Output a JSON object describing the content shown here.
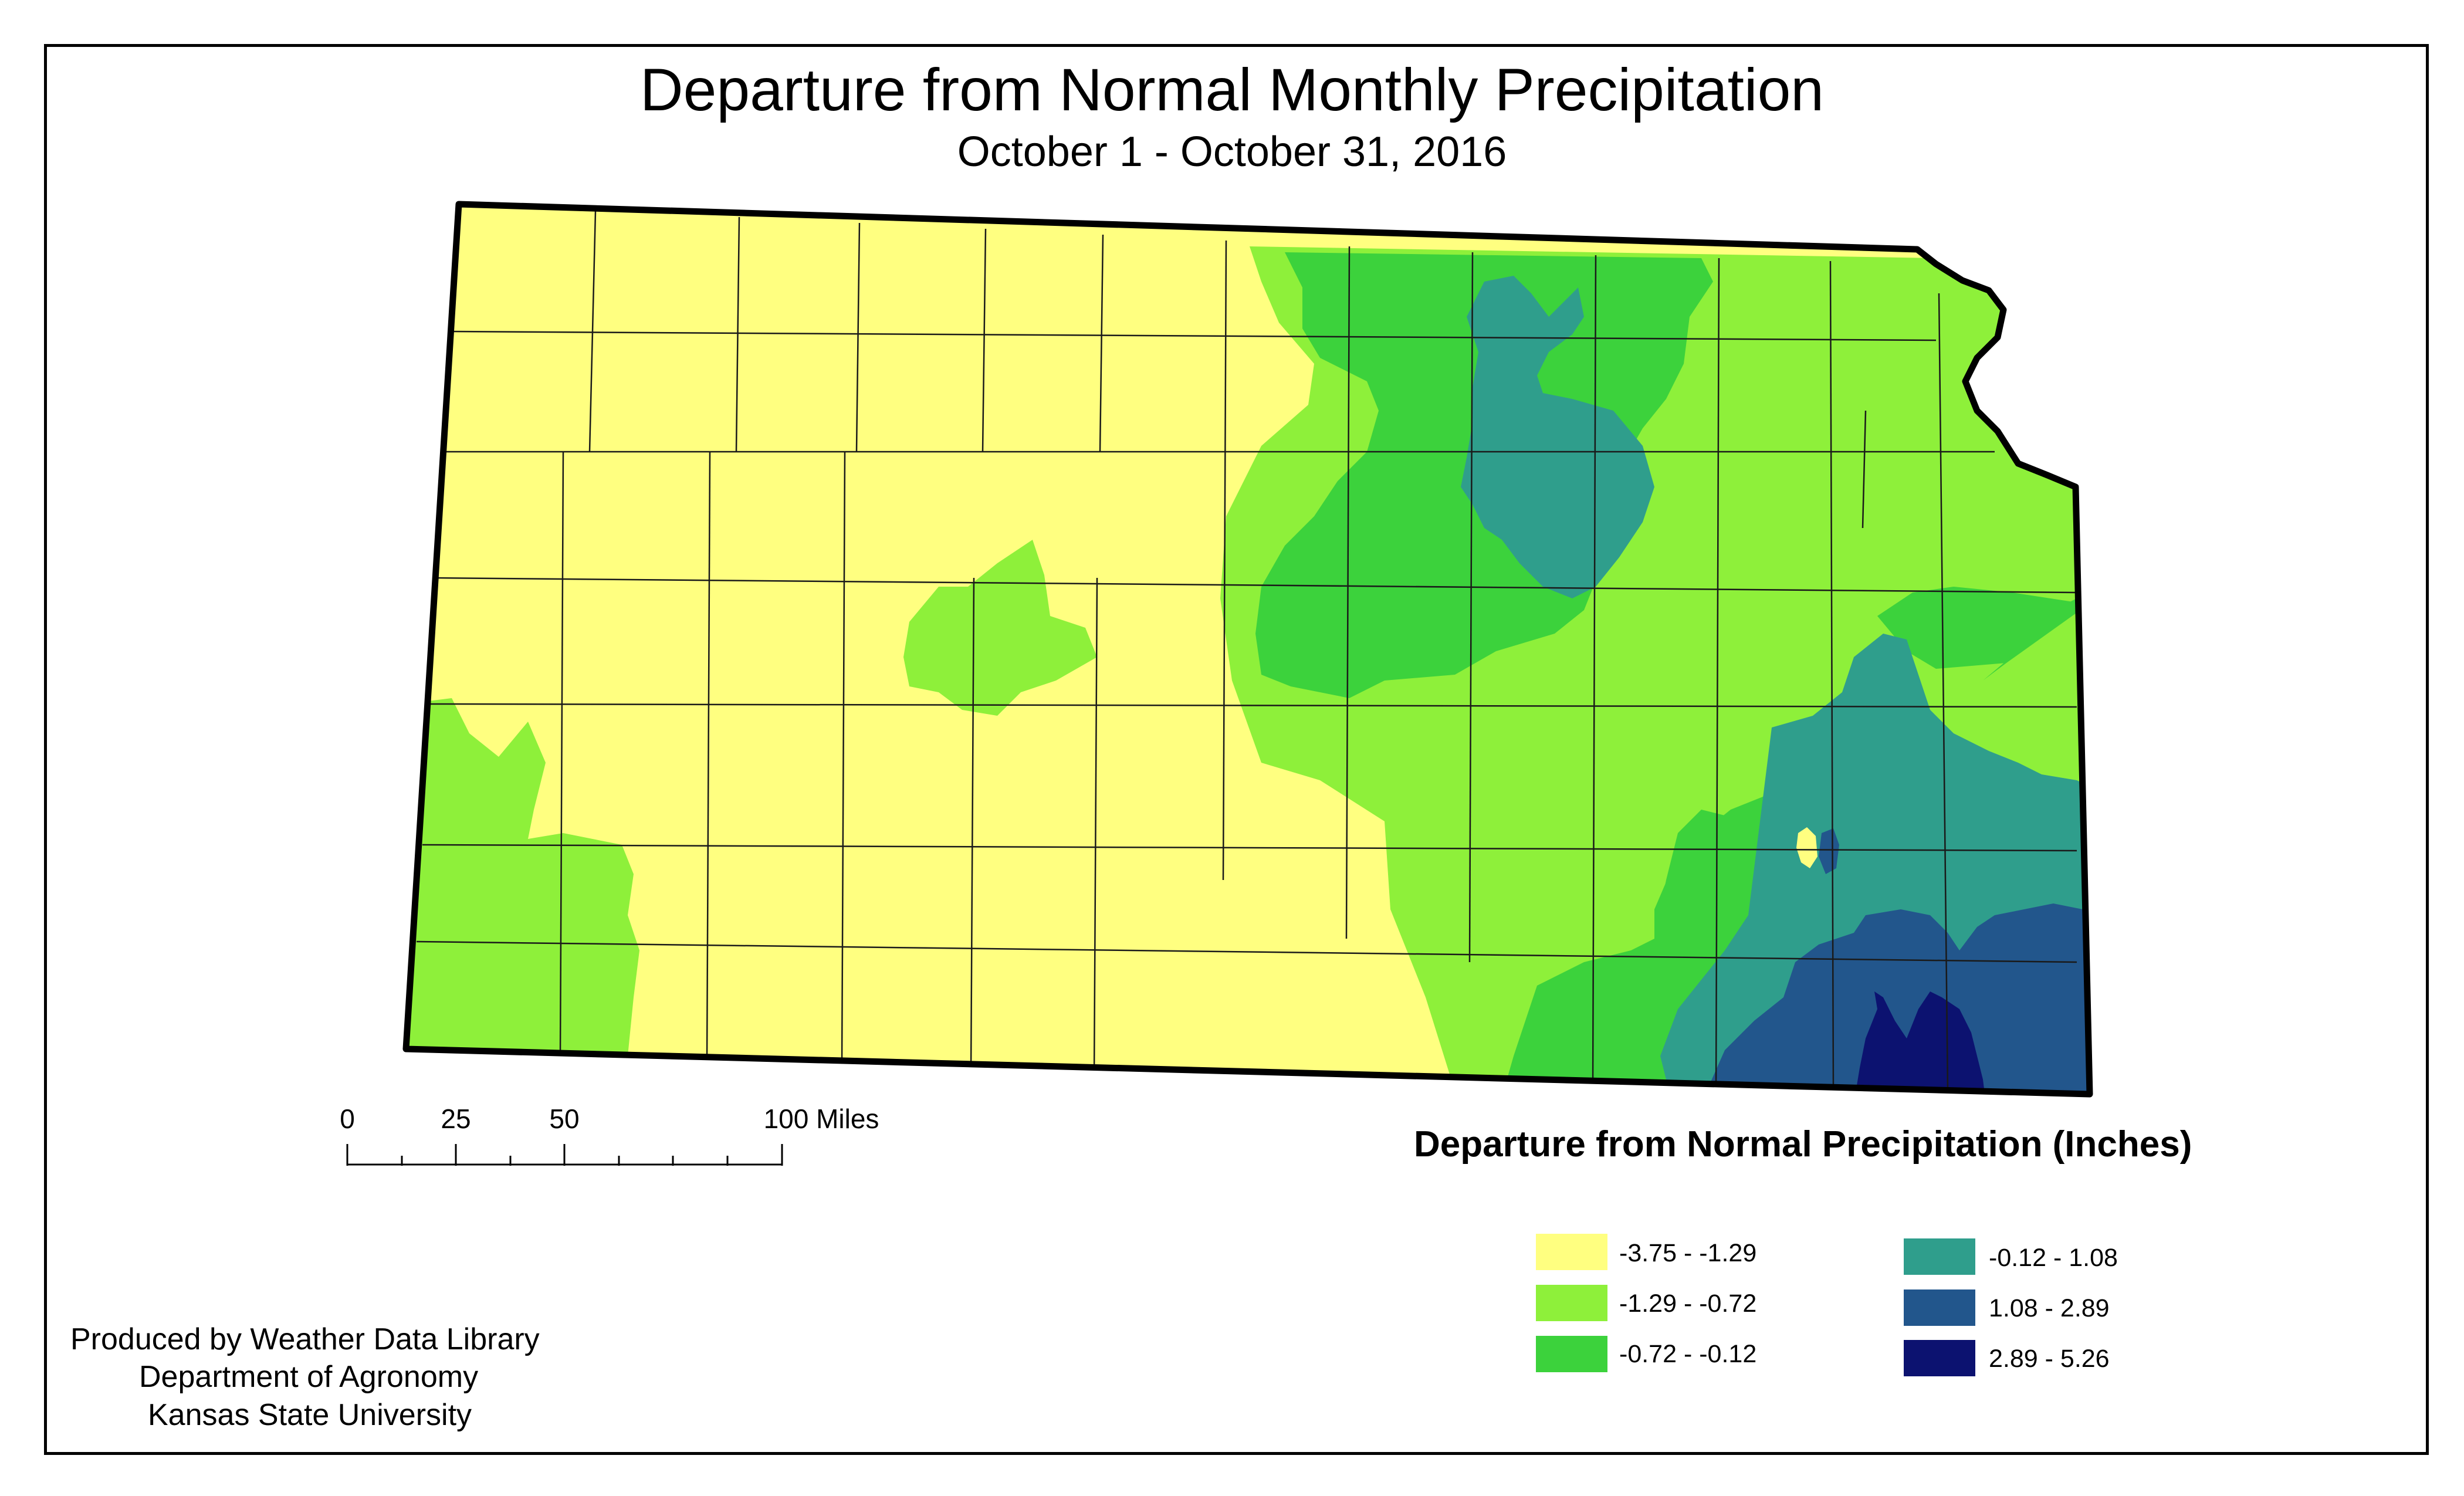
{
  "title": "Departure from Normal Monthly Precipitation",
  "subtitle": "October 1 - October 31, 2016",
  "scale_bar": {
    "labels": [
      "0",
      "25",
      "50",
      "100 Miles"
    ],
    "miles": [
      0,
      25,
      50,
      100
    ]
  },
  "legend": {
    "title": "Departure from Normal Precipitation (Inches)",
    "classes": [
      {
        "label": "-3.75 - -1.29",
        "color": "#ffff80"
      },
      {
        "label": "-1.29 - -0.72",
        "color": "#8ef03a"
      },
      {
        "label": "-0.72 - -0.12",
        "color": "#3cd23c"
      },
      {
        "label": "-0.12 - 1.08",
        "color": "#2f9e8c"
      },
      {
        "label": "1.08 - 2.89",
        "color": "#22568c"
      },
      {
        "label": "2.89 - 5.26",
        "color": "#0c1270"
      }
    ]
  },
  "credits": {
    "line1": "Produced by Weather Data Library",
    "line2": "Department of Agronomy",
    "line3": "Kansas State University"
  }
}
